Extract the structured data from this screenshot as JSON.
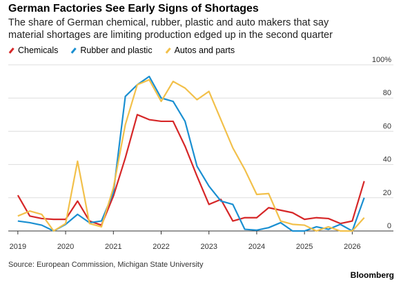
{
  "chart_data": {
    "type": "line",
    "title": "German Factories See Early Signs of Shortages",
    "subtitle": "The share of German chemical, rubber, plastic and auto makers that say material shortages are limiting production edged up in the second quarter",
    "source": "Source: European Commission, Michigan State University",
    "brand": "Bloomberg",
    "x": [
      2019,
      2019.25,
      2019.5,
      2019.75,
      2020,
      2020.25,
      2020.5,
      2020.75,
      2021,
      2021.25,
      2021.5,
      2021.75,
      2022,
      2022.25,
      2022.5,
      2022.75,
      2023,
      2023.25,
      2023.5,
      2023.75,
      2024,
      2024.25,
      2024.5,
      2024.75,
      2025,
      2025.25,
      2025.5,
      2025.75,
      2026,
      2026.25
    ],
    "series": [
      {
        "name": "Chemicals",
        "color": "#d62728",
        "values": [
          21.5,
          9,
          7.5,
          7,
          7,
          18,
          6,
          3.5,
          21,
          44,
          70,
          67,
          66,
          66,
          51,
          33,
          16,
          19,
          6,
          8,
          8,
          14,
          12.5,
          11,
          7,
          8,
          7.5,
          4.5,
          6,
          30
        ]
      },
      {
        "name": "Rubber and plastic",
        "color": "#1a8fd1",
        "values": [
          6,
          5,
          3.5,
          0,
          4,
          10,
          5,
          6,
          23,
          81,
          88,
          93,
          80,
          78,
          66,
          39,
          27,
          18,
          16,
          1,
          0.5,
          2,
          5,
          0,
          0,
          2.5,
          1,
          4,
          0,
          20
        ]
      },
      {
        "name": "Autos and parts",
        "color": "#f2c04a",
        "values": [
          9,
          12,
          10,
          0,
          4.5,
          42,
          4.5,
          2.5,
          26,
          64,
          88,
          91,
          78,
          90,
          86,
          79,
          84,
          67,
          50,
          37,
          22,
          22.5,
          6,
          4,
          3.5,
          0,
          2.5,
          0,
          0,
          8
        ]
      }
    ],
    "xlim": [
      2018.8,
      2026.5
    ],
    "ylim": [
      0,
      100
    ],
    "xticks": [
      2019,
      2020,
      2021,
      2022,
      2023,
      2024,
      2025,
      2026
    ],
    "yticks": [
      0,
      20,
      40,
      60,
      80,
      {
        "value": 100,
        "label": "100%"
      }
    ],
    "grid": true
  }
}
